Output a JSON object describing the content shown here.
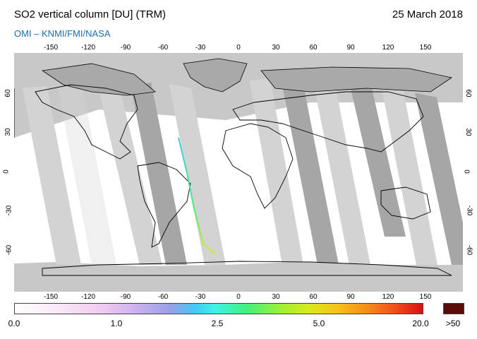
{
  "header": {
    "title": "SO2 vertical column [DU] (TRM)",
    "date": "25 March 2018",
    "credit": "OMI  –  KNMI/FMI/NASA"
  },
  "axes": {
    "lon_ticks": [
      "-150",
      "-120",
      "-90",
      "-60",
      "-30",
      "0",
      "30",
      "60",
      "90",
      "120",
      "150"
    ],
    "lat_ticks": [
      "60",
      "30",
      "0",
      "-30",
      "-60"
    ]
  },
  "colorbar": {
    "labels": [
      "0.0",
      "1.0",
      "2.5",
      "5.0",
      "20.0",
      ">50"
    ]
  },
  "colors": {
    "background": "#c8c8c8",
    "land_gray": "#a9a9a9",
    "swath_dark": "#a6a6a6",
    "swath_light": "#d3d3d3",
    "coastline": "#000000",
    "credit_blue": "#1a6fb0"
  },
  "icons": {
    "map": "world-map-equirectangular"
  }
}
